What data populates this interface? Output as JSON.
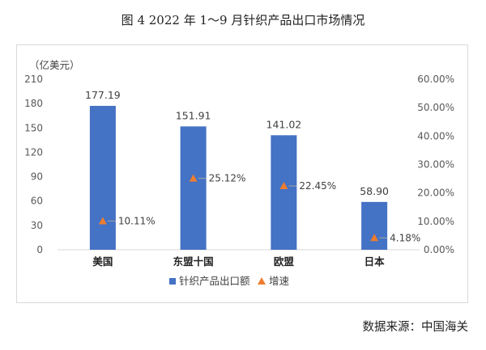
{
  "title": "图 4  2022 年 1～9 月针织产品出口市场情况",
  "source": "数据来源：中国海关",
  "colors": {
    "bar": "#4472c4",
    "marker": "#ed7d31",
    "axis_text": "#595959",
    "grid": "#d9d9d9"
  },
  "chart_data": {
    "type": "bar",
    "categories": [
      "美国",
      "东盟十国",
      "欧盟",
      "日本"
    ],
    "series": [
      {
        "name": "针织产品出口额",
        "type": "bar",
        "axis": "left",
        "values": [
          177.19,
          151.91,
          141.02,
          58.9
        ],
        "labels": [
          "177.19",
          "151.91",
          "141.02",
          "58.90"
        ]
      },
      {
        "name": "增速",
        "type": "scatter",
        "axis": "right",
        "values": [
          10.11,
          25.12,
          22.45,
          4.18
        ],
        "labels": [
          "10.11%",
          "25.12%",
          "22.45%",
          "4.18%"
        ]
      }
    ],
    "ylabel": "（亿美元）",
    "ylim": [
      0,
      210
    ],
    "yticks": [
      "0",
      "30",
      "60",
      "90",
      "120",
      "150",
      "180",
      "210"
    ],
    "y2lim": [
      0,
      60
    ],
    "y2ticks": [
      "0.00%",
      "10.00%",
      "20.00%",
      "30.00%",
      "40.00%",
      "50.00%",
      "60.00%"
    ],
    "grid": false,
    "legend_position": "bottom"
  }
}
